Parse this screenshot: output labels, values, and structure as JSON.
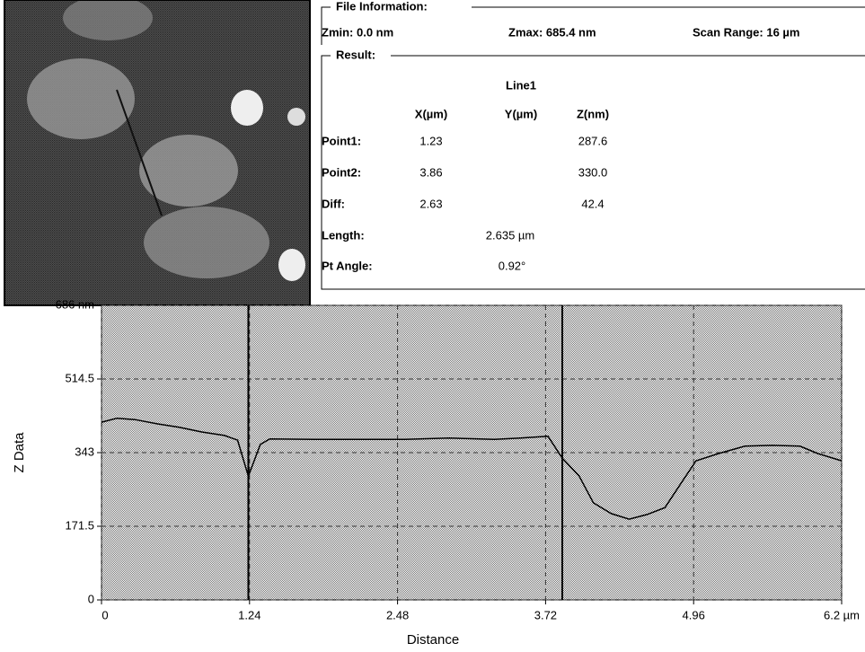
{
  "file_information": {
    "title": "File Information:",
    "zmin": "Zmin: 0.0 nm",
    "zmax": "Zmax: 685.4 nm",
    "scan_range": "Scan Range: 16 µm"
  },
  "result": {
    "title": "Result:",
    "line": "Line1",
    "columns": [
      "X(µm)",
      "Y(µm)",
      "Z(nm)"
    ],
    "rows": [
      {
        "label": "Point1:",
        "x": "1.23",
        "z": "287.6"
      },
      {
        "label": "Point2:",
        "x": "3.86",
        "z": "330.0"
      },
      {
        "label": "Diff:",
        "x": "2.63",
        "z": "42.4"
      }
    ],
    "length": {
      "label": "Length:",
      "value": "2.635 µm"
    },
    "pt_angle": {
      "label": "Pt Angle:",
      "value": "0.92°"
    }
  },
  "chart_data": {
    "type": "line",
    "x_label": "Distance",
    "y_label": "Z Data",
    "color": "#000000",
    "grid": true,
    "x": [
      0,
      0.13,
      0.28,
      0.47,
      0.65,
      0.84,
      1.03,
      1.14,
      1.23,
      1.33,
      1.41,
      1.78,
      2.16,
      2.54,
      2.91,
      3.29,
      3.51,
      3.74,
      3.86,
      4.0,
      4.12,
      4.27,
      4.42,
      4.57,
      4.72,
      4.87,
      4.98,
      5.17,
      5.39,
      5.62,
      5.85,
      6.0,
      6.2
    ],
    "values": [
      414,
      423,
      420,
      410,
      402,
      391,
      383,
      372,
      288,
      362,
      375,
      374,
      374,
      374,
      377,
      374,
      377,
      381,
      330,
      289,
      226,
      201,
      188,
      199,
      215,
      278,
      324,
      341,
      358,
      360,
      358,
      341,
      324
    ],
    "xlim": [
      0,
      6.2
    ],
    "ylim": [
      0,
      686
    ],
    "xticks": [
      0,
      1.24,
      2.48,
      3.72,
      4.96,
      {
        "value": 6.2,
        "label": "6.2 µm"
      }
    ],
    "yticks": [
      0,
      171.5,
      343,
      514.5,
      {
        "value": 686,
        "label": "686 nm"
      }
    ]
  }
}
